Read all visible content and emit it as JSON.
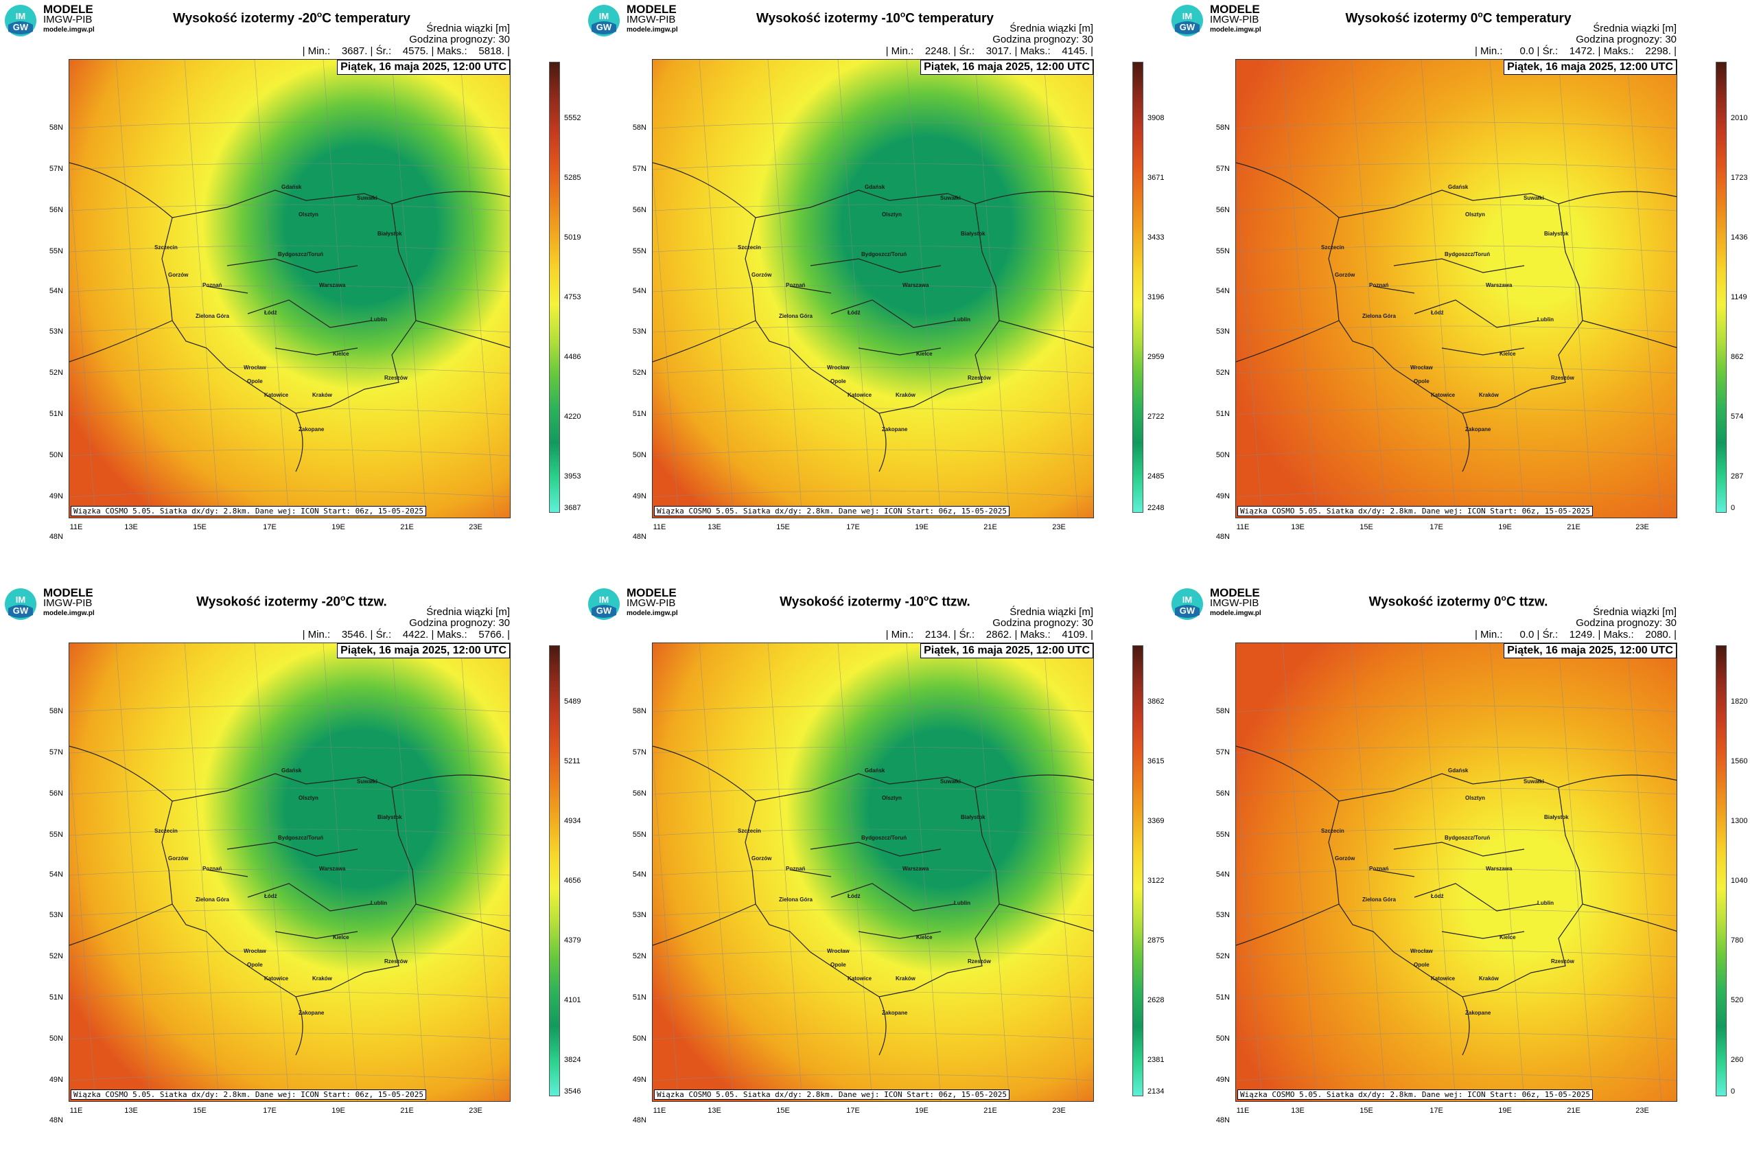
{
  "brand": {
    "name": "MODELE",
    "org": "IMGW-PIB",
    "url": "modele.imgw.pl",
    "logo_text_top": "IM",
    "logo_text_bottom": "GW"
  },
  "common": {
    "info_line1": "Średnia wiązki [m]",
    "info_line2": "Godzina prognozy: 30",
    "date": "Piątek, 16 maja 2025, 12:00 UTC",
    "footer": "Wiązka COSMO 5.05. Siatka dx/dy: 2.8km. Dane wej: ICON Start: 06z, 15-05-2025",
    "lat_labels": [
      "58N",
      "57N",
      "56N",
      "55N",
      "54N",
      "53N",
      "52N",
      "51N",
      "50N",
      "49N",
      "48N"
    ],
    "lon_labels": [
      "11E",
      "13E",
      "15E",
      "17E",
      "19E",
      "21E",
      "23E"
    ],
    "cities": [
      "Gdańsk",
      "Olsztyn",
      "Suwałki",
      "Białystok",
      "Szczecin",
      "Bydgoszcz/Toruń",
      "Gorzów",
      "Poznań",
      "Warszawa",
      "Łódź",
      "Zielona Góra",
      "Lublin",
      "Wrocław",
      "Kielce",
      "Opole",
      "Rzeszów",
      "Katowice",
      "Kraków",
      "Zakopane"
    ]
  },
  "panels": [
    {
      "title_pre": "Wysokość izotermy -20",
      "title_sup": "o",
      "title_post": "C temperatury",
      "stats": "| Min.:    3687. | Śr.:    4575. | Maks.:    5818. |",
      "colorbar_ticks": [
        "5552",
        "5285",
        "5019",
        "4753",
        "4486",
        "4220",
        "3953",
        "3687"
      ],
      "field": "m20t"
    },
    {
      "title_pre": "Wysokość izotermy -10",
      "title_sup": "o",
      "title_post": "C temperatury",
      "stats": "| Min.:    2248. | Śr.:    3017. | Maks.:    4145. |",
      "colorbar_ticks": [
        "3908",
        "3671",
        "3433",
        "3196",
        "2959",
        "2722",
        "2485",
        "2248"
      ],
      "field": "m10t"
    },
    {
      "title_pre": "Wysokość izotermy 0",
      "title_sup": "o",
      "title_post": "C temperatury",
      "stats": "| Min.:      0.0 | Śr.:    1472. | Maks.:    2298. |",
      "colorbar_ticks": [
        "2010",
        "1723",
        "1436",
        "1149",
        "862",
        "574",
        "287",
        "0"
      ],
      "field": "z0t"
    },
    {
      "title_pre": "Wysokość izotermy -20",
      "title_sup": "o",
      "title_post": "C ttzw.",
      "stats": "| Min.:    3546. | Śr.:    4422. | Maks.:    5766. |",
      "colorbar_ticks": [
        "5489",
        "5211",
        "4934",
        "4656",
        "4379",
        "4101",
        "3824",
        "3546"
      ],
      "field": "m20w"
    },
    {
      "title_pre": "Wysokość izotermy -10",
      "title_sup": "o",
      "title_post": "C ttzw.",
      "stats": "| Min.:    2134. | Śr.:    2862. | Maks.:    4109. |",
      "colorbar_ticks": [
        "3862",
        "3615",
        "3369",
        "3122",
        "2875",
        "2628",
        "2381",
        "2134"
      ],
      "field": "m10w"
    },
    {
      "title_pre": "Wysokość izotermy 0",
      "title_sup": "o",
      "title_post": "C ttzw.",
      "stats": "| Min.:      0.0 | Śr.:    1249. | Maks.:    2080. |",
      "colorbar_ticks": [
        "1820",
        "1560",
        "1300",
        "1040",
        "780",
        "520",
        "260",
        "0"
      ],
      "field": "z0w"
    }
  ],
  "colors": {
    "scale": [
      "#5ef0d8",
      "#2bd18c",
      "#129a5e",
      "#2db35a",
      "#67c83c",
      "#b6e03a",
      "#f5f23a",
      "#f7d52a",
      "#f2aa1e",
      "#ec7f1a",
      "#e2561c",
      "#c43a1e",
      "#8f2a1b",
      "#4a1a10"
    ]
  }
}
